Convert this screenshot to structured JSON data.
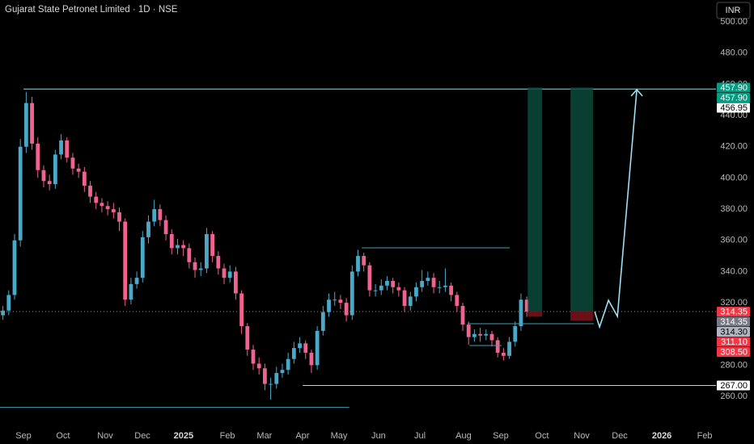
{
  "chart_data": {
    "type": "candlestick",
    "title": "Gujarat State Petronet Limited · 1D · NSE",
    "currency": "INR",
    "up_color": "#4aa8c8",
    "down_color": "#f0628f",
    "x": [
      1.5,
      4.5,
      7.5,
      10.5,
      13.5,
      16.5,
      19.5,
      22.5,
      25.5,
      28.5,
      31.5,
      34.5,
      37.5,
      40.5,
      43.5,
      46.5,
      49.5,
      52.5,
      55.5,
      58.5,
      61.5,
      64.5,
      67.5,
      70.5,
      73.5,
      76.5,
      79.5,
      82.5,
      85.5,
      88.5,
      91.5,
      94.5,
      97.5,
      100.5,
      103.5,
      106.5,
      109.5,
      112.5,
      115.5,
      118.5,
      121.5,
      124.5,
      127.5,
      130.5,
      133.5,
      136.5,
      139.5,
      142.5,
      145.5,
      148.5,
      151.5,
      154.5,
      157.5,
      160.5,
      163.5,
      166.5,
      169.5,
      172.5,
      175.5,
      178.5,
      181.5,
      184.5,
      187.5,
      190.5,
      193.5,
      196.5,
      199.5,
      202.5,
      205.5,
      208.5,
      211.5,
      214.5,
      217.5,
      220.5,
      223.5,
      226.5,
      229.5,
      232.5,
      235.5,
      238.5,
      241.5,
      244.5,
      247.5,
      250.5,
      253.5,
      256.5,
      259.5,
      262.5,
      265.5,
      268.5,
      271.5
    ],
    "open": [
      312,
      315,
      325,
      360,
      420,
      448,
      422,
      405,
      398,
      396,
      415,
      424,
      413,
      406,
      404,
      395,
      388,
      384,
      382,
      380,
      378,
      372,
      322,
      332,
      336,
      362,
      372,
      380,
      373,
      364,
      355,
      357,
      355,
      346,
      341,
      342,
      364,
      350,
      342,
      336,
      340,
      326,
      305,
      290,
      281,
      278,
      268,
      268,
      275,
      277,
      284,
      291,
      294,
      288,
      280,
      302,
      314,
      322,
      322,
      320,
      312,
      340,
      350,
      344,
      328,
      328,
      331,
      334,
      330,
      328,
      318,
      324,
      330,
      334,
      336,
      330,
      330,
      331,
      325,
      318,
      306,
      298,
      300,
      299,
      300,
      296,
      288,
      286,
      295,
      305,
      322
    ],
    "high": [
      318,
      328,
      364,
      425,
      455,
      452,
      426,
      408,
      402,
      418,
      428,
      426,
      416,
      409,
      407,
      398,
      391,
      387,
      385,
      384,
      381,
      374,
      336,
      340,
      366,
      376,
      386,
      383,
      376,
      367,
      361,
      360,
      358,
      349,
      346,
      368,
      366,
      353,
      345,
      344,
      343,
      328,
      307,
      293,
      285,
      281,
      272,
      279,
      281,
      288,
      295,
      298,
      296,
      290,
      305,
      318,
      326,
      327,
      325,
      323,
      344,
      354,
      352,
      346,
      332,
      335,
      337,
      336,
      333,
      330,
      327,
      333,
      341,
      340,
      339,
      334,
      342,
      333,
      327,
      320,
      308,
      303,
      304,
      303,
      302,
      298,
      291,
      298,
      308,
      326,
      324
    ],
    "low": [
      309,
      312,
      322,
      356,
      416,
      418,
      400,
      394,
      392,
      393,
      412,
      410,
      402,
      400,
      391,
      384,
      380,
      378,
      376,
      374,
      366,
      318,
      319,
      329,
      333,
      358,
      369,
      369,
      360,
      351,
      351,
      350,
      342,
      336,
      337,
      339,
      346,
      338,
      332,
      333,
      322,
      300,
      286,
      277,
      274,
      264,
      258,
      265,
      272,
      274,
      281,
      288,
      284,
      275,
      277,
      299,
      311,
      318,
      316,
      308,
      309,
      337,
      340,
      324,
      324,
      325,
      328,
      326,
      324,
      314,
      315,
      321,
      327,
      331,
      326,
      326,
      327,
      321,
      314,
      302,
      293,
      295,
      295,
      296,
      292,
      285,
      283,
      284,
      292,
      302,
      311
    ],
    "close": [
      315,
      325,
      360,
      420,
      448,
      422,
      405,
      398,
      396,
      415,
      424,
      413,
      406,
      404,
      395,
      388,
      384,
      382,
      380,
      378,
      372,
      322,
      332,
      336,
      362,
      372,
      380,
      373,
      364,
      355,
      357,
      355,
      346,
      341,
      342,
      364,
      350,
      342,
      336,
      340,
      326,
      305,
      290,
      281,
      278,
      268,
      268,
      275,
      277,
      284,
      291,
      294,
      288,
      280,
      302,
      314,
      322,
      322,
      320,
      312,
      340,
      350,
      344,
      328,
      328,
      331,
      334,
      330,
      328,
      318,
      324,
      330,
      334,
      336,
      330,
      330,
      331,
      325,
      318,
      306,
      298,
      300,
      299,
      300,
      296,
      288,
      286,
      295,
      305,
      322,
      314.35
    ],
    "xlim": [
      0,
      369
    ],
    "xticks": [
      {
        "value": 12.1,
        "label": "Sep"
      },
      {
        "value": 32.5,
        "label": "Oct"
      },
      {
        "value": 54.2,
        "label": "Nov"
      },
      {
        "value": 73.4,
        "label": "Dec"
      },
      {
        "value": 94.6,
        "label": "2025"
      },
      {
        "value": 117.2,
        "label": "Feb"
      },
      {
        "value": 136.3,
        "label": "Mar"
      },
      {
        "value": 155.9,
        "label": "Apr"
      },
      {
        "value": 174.7,
        "label": "May"
      },
      {
        "value": 195.1,
        "label": "Jun"
      },
      {
        "value": 216.4,
        "label": "Jul"
      },
      {
        "value": 238.9,
        "label": "Aug"
      },
      {
        "value": 258.1,
        "label": "Sep"
      },
      {
        "value": 279.3,
        "label": "Oct"
      },
      {
        "value": 299.8,
        "label": "Nov"
      },
      {
        "value": 319.4,
        "label": "Dec"
      },
      {
        "value": 341.1,
        "label": "2026"
      },
      {
        "value": 363.2,
        "label": "Feb"
      }
    ],
    "ylim": [
      244,
      514
    ],
    "yticks": [
      {
        "value": 260,
        "label": "260.00"
      },
      {
        "value": 280,
        "label": "280.00"
      },
      {
        "value": 300,
        "label": "300.00"
      },
      {
        "value": 320,
        "label": "320.00"
      },
      {
        "value": 340,
        "label": "340.00"
      },
      {
        "value": 360,
        "label": "360.00"
      },
      {
        "value": 380,
        "label": "380.00"
      },
      {
        "value": 400,
        "label": "400.00"
      },
      {
        "value": 420,
        "label": "420.00"
      },
      {
        "value": 440,
        "label": "440.00"
      },
      {
        "value": 460,
        "label": "460.00"
      },
      {
        "value": 480,
        "label": "480.00"
      },
      {
        "value": 500,
        "label": "500.00"
      }
    ],
    "levels": [
      {
        "price": 456.95,
        "from": 12.1,
        "to": 369,
        "color": "#9fd3e0"
      },
      {
        "price": 355.2,
        "from": 186.4,
        "to": 262.7,
        "color": "#3f9fb5"
      },
      {
        "price": 267,
        "from": 156,
        "to": 369,
        "color": "#d0d0d0"
      },
      {
        "price": 253,
        "from": 0,
        "to": 180,
        "color": "#3f9fb5"
      },
      {
        "price": 306.6,
        "from": 241,
        "to": 306,
        "color": "#3f9fb5"
      },
      {
        "price": 292.6,
        "from": 242,
        "to": 258.5,
        "color": "#3f9fb5"
      }
    ],
    "positions": [
      {
        "from": 272,
        "to": 279.4,
        "target": 457.9,
        "entry": 314.35,
        "stop": 311.1
      },
      {
        "from": 294,
        "to": 305.6,
        "target": 457.9,
        "entry": 314.35,
        "stop": 308.5
      }
    ],
    "arrow": {
      "color": "#9be0f5",
      "x": [
        306.5,
        309,
        313.6,
        318.2,
        328.2
      ],
      "y": [
        314.35,
        304.5,
        321.6,
        311.3,
        456.6
      ]
    },
    "price_labels": [
      {
        "value": 457.9,
        "label": "457.90",
        "color": "#089981",
        "text_color": "#ffffff"
      },
      {
        "value": 457.9,
        "label": "457.90",
        "color": "#089981",
        "text_color": "#ffffff"
      },
      {
        "value": 456.95,
        "label": "456.95",
        "color": "#ffffff",
        "text_color": "#000000"
      },
      {
        "value": 314.35,
        "label": "314.35",
        "color": "#f23645",
        "text_color": "#ffffff"
      },
      {
        "value": 314.35,
        "label": "314.35",
        "color": "#787b86",
        "text_color": "#ffffff"
      },
      {
        "value": 314.3,
        "label": "314.30",
        "color": "#b2b5be",
        "text_color": "#000000"
      },
      {
        "value": 311.1,
        "label": "311.10",
        "color": "#f23645",
        "text_color": "#ffffff"
      },
      {
        "value": 308.5,
        "label": "308.50",
        "color": "#f23645",
        "text_color": "#ffffff"
      },
      {
        "value": 267,
        "label": "267.00",
        "color": "#ffffff",
        "text_color": "#000000"
      }
    ]
  }
}
